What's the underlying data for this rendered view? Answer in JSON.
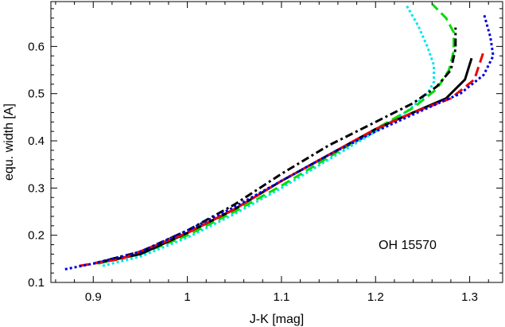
{
  "chart_data": {
    "type": "line",
    "title": "",
    "xlabel": "J-K [mag]",
    "ylabel": "equ. width [A]",
    "xlim": [
      0.855,
      1.335
    ],
    "ylim": [
      0.1,
      0.695
    ],
    "xticks": [
      0.9,
      1,
      1.1,
      1.2,
      1.3
    ],
    "xtick_labels": [
      "0.9",
      "1",
      "1.1",
      "1.2",
      "1.3"
    ],
    "yticks": [
      0.1,
      0.2,
      0.3,
      0.4,
      0.5,
      0.6
    ],
    "ytick_labels": [
      "0.1",
      "0.2",
      "0.3",
      "0.4",
      "0.5",
      "0.6"
    ],
    "grid": false,
    "annotation": "OH 15570",
    "series": [
      {
        "color": "#00e5ee",
        "dash": "dotted",
        "points": [
          [
            0.91,
            0.135
          ],
          [
            0.95,
            0.155
          ],
          [
            1.0,
            0.195
          ],
          [
            1.05,
            0.245
          ],
          [
            1.1,
            0.3
          ],
          [
            1.15,
            0.36
          ],
          [
            1.2,
            0.42
          ],
          [
            1.235,
            0.465
          ],
          [
            1.255,
            0.5
          ],
          [
            1.262,
            0.525
          ],
          [
            1.262,
            0.56
          ],
          [
            1.255,
            0.6
          ],
          [
            1.245,
            0.645
          ],
          [
            1.232,
            0.69
          ]
        ]
      },
      {
        "color": "#00dd00",
        "dash": "long-dash",
        "points": [
          [
            0.905,
            0.14
          ],
          [
            0.95,
            0.16
          ],
          [
            1.0,
            0.2
          ],
          [
            1.05,
            0.25
          ],
          [
            1.1,
            0.305
          ],
          [
            1.15,
            0.365
          ],
          [
            1.2,
            0.425
          ],
          [
            1.24,
            0.47
          ],
          [
            1.265,
            0.51
          ],
          [
            1.278,
            0.55
          ],
          [
            1.283,
            0.59
          ],
          [
            1.283,
            0.63
          ],
          [
            1.275,
            0.66
          ],
          [
            1.26,
            0.69
          ]
        ]
      },
      {
        "color": "#000000",
        "dash": "dash-dot",
        "points": [
          [
            0.9,
            0.14
          ],
          [
            0.95,
            0.165
          ],
          [
            1.0,
            0.21
          ],
          [
            1.05,
            0.265
          ],
          [
            1.1,
            0.33
          ],
          [
            1.15,
            0.39
          ],
          [
            1.2,
            0.44
          ],
          [
            1.24,
            0.48
          ],
          [
            1.265,
            0.515
          ],
          [
            1.28,
            0.55
          ],
          [
            1.285,
            0.595
          ],
          [
            1.285,
            0.64
          ]
        ]
      },
      {
        "color": "#000000",
        "dash": "solid",
        "points": [
          [
            0.9,
            0.14
          ],
          [
            0.95,
            0.16
          ],
          [
            1.0,
            0.205
          ],
          [
            1.05,
            0.255
          ],
          [
            1.1,
            0.315
          ],
          [
            1.15,
            0.37
          ],
          [
            1.2,
            0.425
          ],
          [
            1.24,
            0.46
          ],
          [
            1.275,
            0.49
          ],
          [
            1.295,
            0.53
          ],
          [
            1.302,
            0.575
          ]
        ]
      },
      {
        "color": "#ee0000",
        "dash": "long-dash",
        "points": [
          [
            0.885,
            0.135
          ],
          [
            0.93,
            0.15
          ],
          [
            1.0,
            0.205
          ],
          [
            1.05,
            0.255
          ],
          [
            1.1,
            0.315
          ],
          [
            1.15,
            0.37
          ],
          [
            1.2,
            0.425
          ],
          [
            1.24,
            0.46
          ],
          [
            1.28,
            0.49
          ],
          [
            1.305,
            0.53
          ],
          [
            1.315,
            0.59
          ]
        ]
      },
      {
        "color": "#0000dd",
        "dash": "dotted",
        "points": [
          [
            0.87,
            0.128
          ],
          [
            0.9,
            0.14
          ],
          [
            0.95,
            0.165
          ],
          [
            1.0,
            0.21
          ],
          [
            1.05,
            0.26
          ],
          [
            1.1,
            0.315
          ],
          [
            1.15,
            0.37
          ],
          [
            1.2,
            0.42
          ],
          [
            1.25,
            0.465
          ],
          [
            1.29,
            0.5
          ],
          [
            1.315,
            0.54
          ],
          [
            1.325,
            0.58
          ],
          [
            1.322,
            0.62
          ],
          [
            1.315,
            0.67
          ]
        ]
      }
    ]
  }
}
